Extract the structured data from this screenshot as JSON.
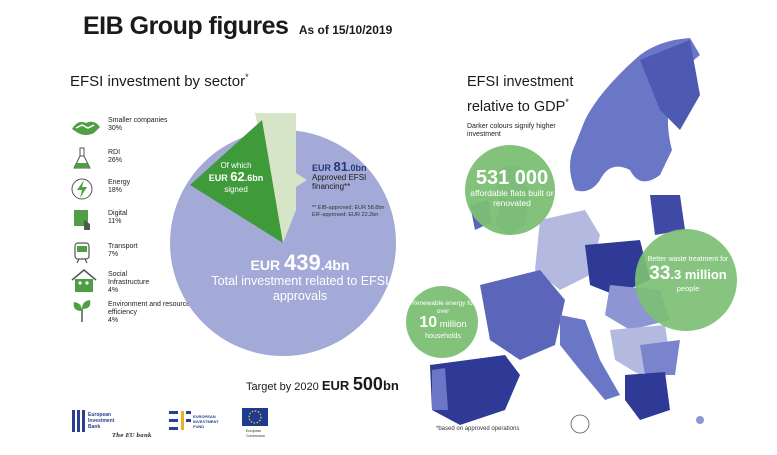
{
  "header": {
    "title": "EIB Group figures",
    "as_of": "As of 15/10/2019"
  },
  "sector_section": {
    "heading": "EFSI investment by sector",
    "heading_mark": "*",
    "items": [
      {
        "label": "Smaller companies",
        "percent": "30%",
        "icon": "handshake-icon"
      },
      {
        "label": "RDI",
        "percent": "26%",
        "icon": "lab-flask-icon"
      },
      {
        "label": "Energy",
        "percent": "18%",
        "icon": "lightning-bolt-icon"
      },
      {
        "label": "Digital",
        "percent": "11%",
        "icon": "tablet-touch-icon"
      },
      {
        "label": "Transport",
        "percent": "7%",
        "icon": "train-icon"
      },
      {
        "label": "Social Infrastructure",
        "percent": "4%",
        "icon": "family-house-icon"
      },
      {
        "label": "Environment and resource efficiency",
        "percent": "4%",
        "icon": "plant-icon"
      }
    ]
  },
  "pie": {
    "total_prefix": "EUR ",
    "total_value": "439",
    "total_suffix": ".4bn",
    "total_label": "Total investment related to EFSI approvals",
    "signed_prefix": "Of which",
    "signed_currency": "EUR ",
    "signed_value": "62",
    "signed_suffix": ".6bn",
    "signed_label": "signed",
    "approved_currency": "EUR ",
    "approved_value": "81",
    "approved_suffix": ".0bn",
    "approved_label": "Approved EFSI financing**",
    "approved_note_1": "** EIB-approved: EUR 58.8bn",
    "approved_note_2": "EIF-approved: EUR 22.2bn",
    "colors": {
      "total": "#a3aad8",
      "approved": "#d6e5c8",
      "signed": "#3f9a3a"
    }
  },
  "target": {
    "prefix": "Target by 2020",
    "currency": "EUR ",
    "value": "500",
    "suffix": "bn"
  },
  "gdp_section": {
    "heading": "EFSI investment relative to GDP",
    "heading_mark": "*",
    "subtitle": "Darker colours signify higher investment",
    "footnote": "*based on approved operations"
  },
  "bubbles": {
    "flats_number": "531 000",
    "flats_label": "affordable flats built or renovated",
    "waste_label": "Better waste treatment for",
    "waste_number": "33",
    "waste_number_suffix": ".3 million",
    "waste_unit": "people",
    "renew_label": "Renewable energy for over",
    "renew_number": "10",
    "renew_number_suffix": " million",
    "renew_unit": "households",
    "color": "#7cbf74"
  },
  "logos": {
    "eib_line1": "European",
    "eib_line2": "Investment",
    "eib_line3": "Bank",
    "eib_tagline": "The EU bank",
    "eif_line1": "EUROPEAN",
    "eif_line2": "INVESTMENT",
    "eif_line3": "FUND",
    "ec_line1": "European",
    "ec_line2": "Commission"
  }
}
